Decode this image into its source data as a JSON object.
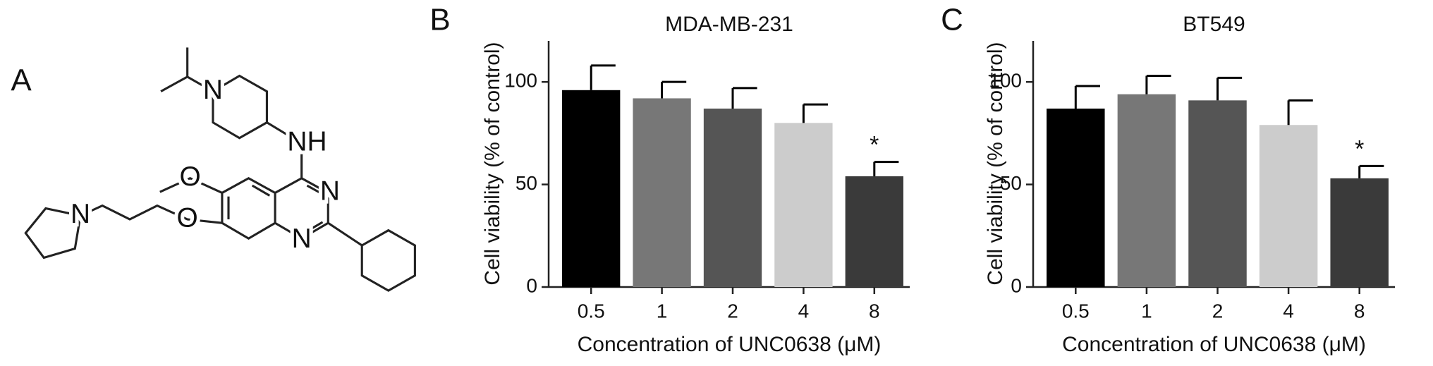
{
  "panel_labels": [
    "A",
    "B",
    "C"
  ],
  "structure": {
    "atom_labels": [
      "N",
      "NH",
      "O",
      "O",
      "N",
      "N",
      "N"
    ]
  },
  "chart_data": [
    {
      "type": "bar",
      "title": "MDA-MB-231",
      "xlabel": "Concentration of UNC0638 (μM)",
      "ylabel": "Cell viability (% of control)",
      "categories": [
        "0.5",
        "1",
        "2",
        "4",
        "8"
      ],
      "series": [
        {
          "values": [
            96,
            92,
            87,
            80,
            54
          ],
          "errors": [
            12,
            8,
            10,
            9,
            7
          ]
        }
      ],
      "colors": [
        "#000000",
        "#777777",
        "#555555",
        "#cccccc",
        "#3a3a3a"
      ],
      "ylim": [
        0,
        120
      ],
      "yticks": [
        0,
        50,
        100
      ],
      "annotations": [
        {
          "text": "*",
          "category": "8"
        }
      ]
    },
    {
      "type": "bar",
      "title": "BT549",
      "xlabel": "Concentration of UNC0638 (μM)",
      "ylabel": "Cell viability (% of control)",
      "categories": [
        "0.5",
        "1",
        "2",
        "4",
        "8"
      ],
      "series": [
        {
          "values": [
            87,
            94,
            91,
            79,
            53
          ],
          "errors": [
            11,
            9,
            11,
            12,
            6
          ]
        }
      ],
      "colors": [
        "#000000",
        "#777777",
        "#555555",
        "#cccccc",
        "#3a3a3a"
      ],
      "ylim": [
        0,
        120
      ],
      "yticks": [
        0,
        50,
        100
      ],
      "annotations": [
        {
          "text": "*",
          "category": "8"
        }
      ]
    }
  ]
}
